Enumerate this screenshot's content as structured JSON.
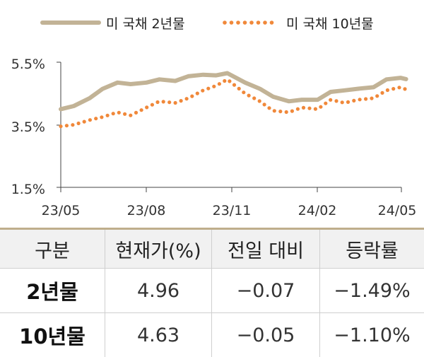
{
  "chart_data": {
    "type": "line",
    "x_range": [
      "2023-05",
      "2024-05"
    ],
    "x_ticks": [
      "23/05",
      "23/08",
      "23/11",
      "24/02",
      "24/05"
    ],
    "y_ticks": [
      "5.5%",
      "3.5%",
      "1.5%"
    ],
    "ylim": [
      1.5,
      5.5
    ],
    "legend_position": "top",
    "series": [
      {
        "name": "미 국채 2년물",
        "style": "solid",
        "color": "#c2b396",
        "values": [
          [
            "2023-05-01",
            4.0
          ],
          [
            "2023-05-15",
            4.1
          ],
          [
            "2023-06-01",
            4.35
          ],
          [
            "2023-06-15",
            4.65
          ],
          [
            "2023-07-01",
            4.85
          ],
          [
            "2023-07-15",
            4.8
          ],
          [
            "2023-08-01",
            4.85
          ],
          [
            "2023-08-15",
            4.95
          ],
          [
            "2023-09-01",
            4.9
          ],
          [
            "2023-09-15",
            5.05
          ],
          [
            "2023-10-01",
            5.1
          ],
          [
            "2023-10-15",
            5.08
          ],
          [
            "2023-10-27",
            5.15
          ],
          [
            "2023-11-15",
            4.85
          ],
          [
            "2023-12-01",
            4.65
          ],
          [
            "2023-12-15",
            4.4
          ],
          [
            "2024-01-01",
            4.25
          ],
          [
            "2024-01-15",
            4.3
          ],
          [
            "2024-02-01",
            4.3
          ],
          [
            "2024-02-15",
            4.55
          ],
          [
            "2024-03-01",
            4.6
          ],
          [
            "2024-03-15",
            4.65
          ],
          [
            "2024-04-01",
            4.7
          ],
          [
            "2024-04-15",
            4.95
          ],
          [
            "2024-04-30",
            5.0
          ],
          [
            "2024-05-06",
            4.96
          ]
        ]
      },
      {
        "name": "미 국채 10년물",
        "style": "dotted",
        "color": "#f0883a",
        "values": [
          [
            "2023-05-01",
            3.45
          ],
          [
            "2023-05-15",
            3.5
          ],
          [
            "2023-06-01",
            3.65
          ],
          [
            "2023-06-15",
            3.75
          ],
          [
            "2023-07-01",
            3.9
          ],
          [
            "2023-07-15",
            3.8
          ],
          [
            "2023-08-01",
            4.05
          ],
          [
            "2023-08-15",
            4.25
          ],
          [
            "2023-09-01",
            4.2
          ],
          [
            "2023-09-15",
            4.35
          ],
          [
            "2023-10-01",
            4.6
          ],
          [
            "2023-10-15",
            4.75
          ],
          [
            "2023-10-27",
            4.95
          ],
          [
            "2023-11-15",
            4.5
          ],
          [
            "2023-12-01",
            4.25
          ],
          [
            "2023-12-15",
            3.95
          ],
          [
            "2024-01-01",
            3.9
          ],
          [
            "2024-01-15",
            4.05
          ],
          [
            "2024-02-01",
            4.0
          ],
          [
            "2024-02-15",
            4.3
          ],
          [
            "2024-03-01",
            4.2
          ],
          [
            "2024-03-15",
            4.3
          ],
          [
            "2024-04-01",
            4.35
          ],
          [
            "2024-04-15",
            4.6
          ],
          [
            "2024-04-30",
            4.7
          ],
          [
            "2024-05-06",
            4.63
          ]
        ]
      }
    ]
  },
  "table": {
    "headers": [
      "구분",
      "현재가(%)",
      "전일 대비",
      "등락률"
    ],
    "rows": [
      [
        "2년물",
        "4.96",
        "−0.07",
        "−1.49%"
      ],
      [
        "10년물",
        "4.63",
        "−0.05",
        "−1.10%"
      ]
    ]
  }
}
